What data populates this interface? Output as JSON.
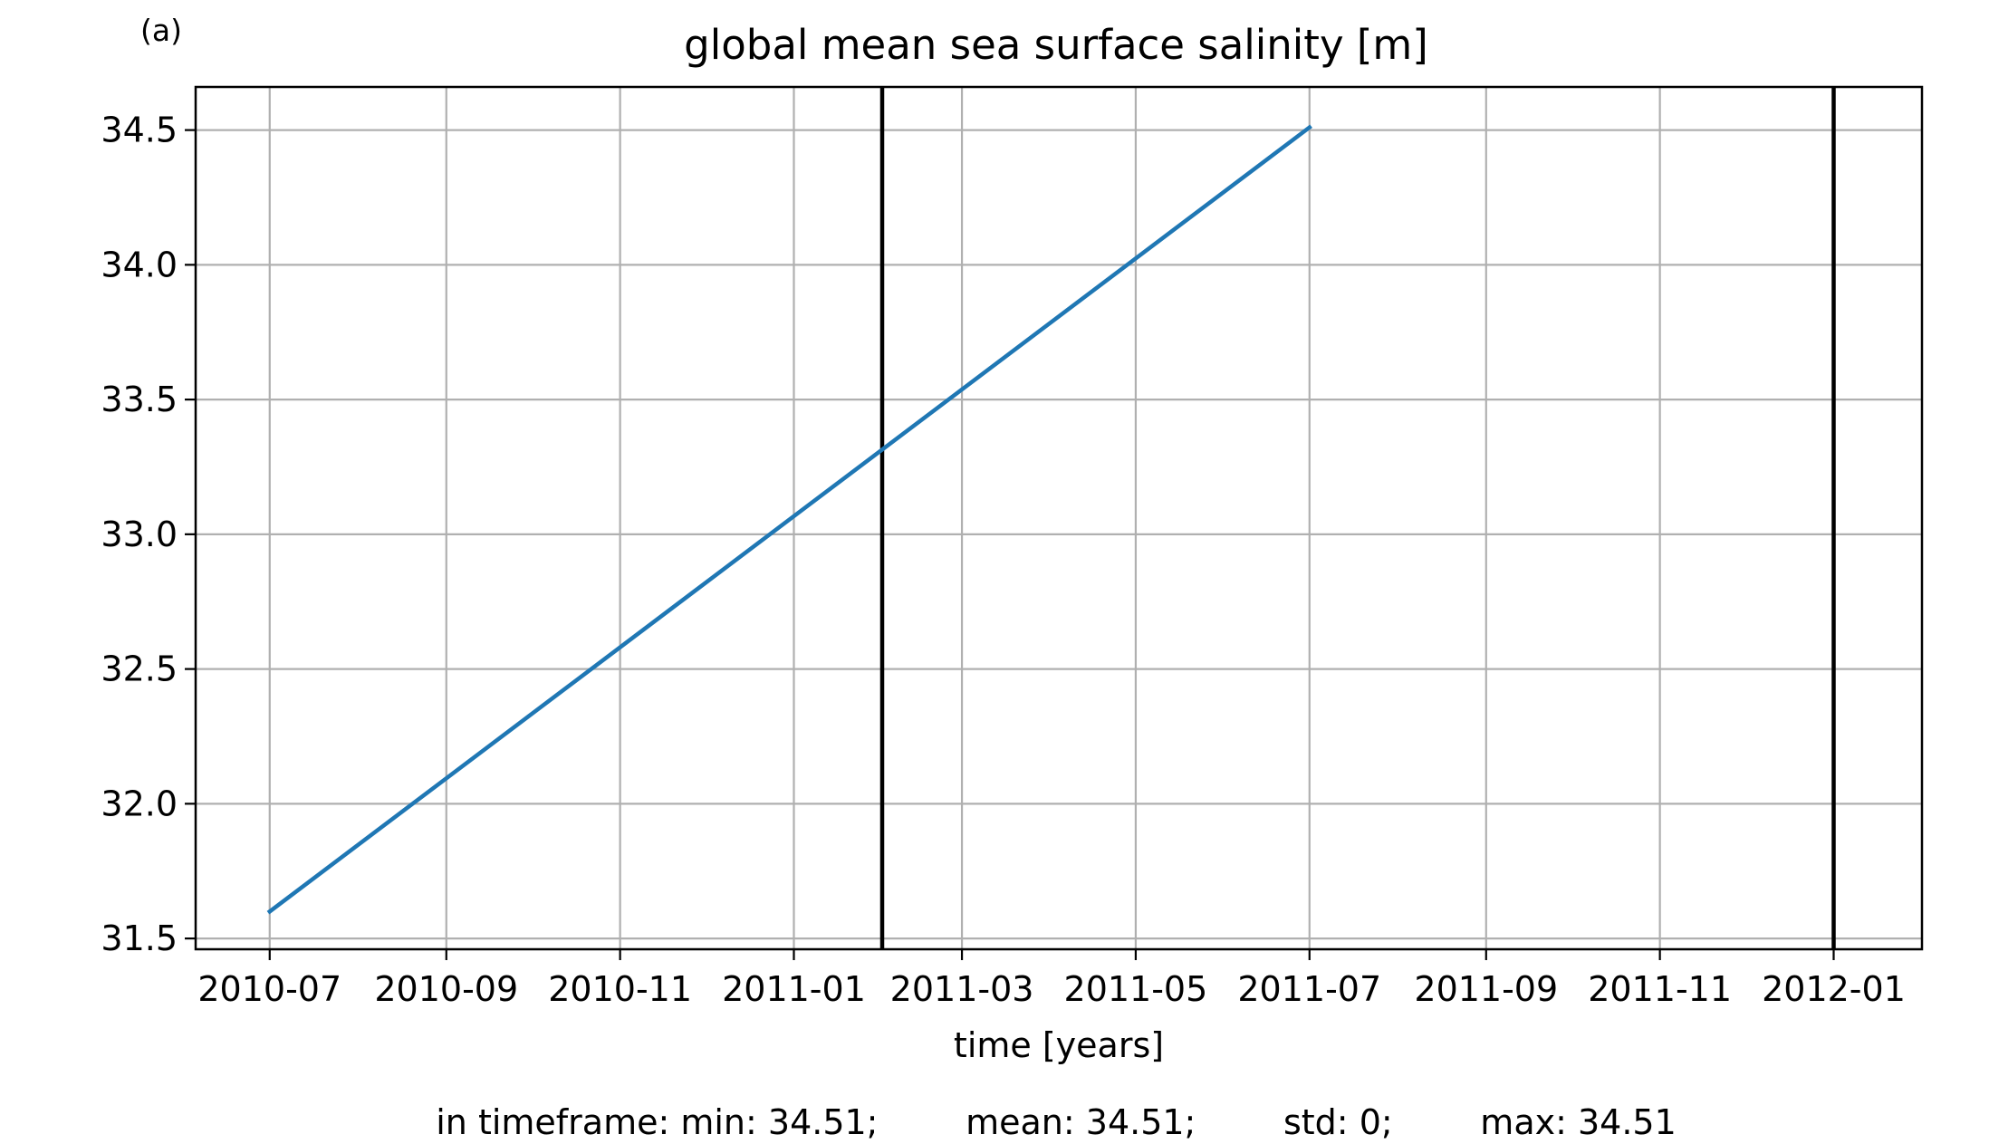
{
  "panel_label": "(a)",
  "stats_line": "in timeframe: min: 34.51;        mean: 34.51;        std: 0;        max: 34.51",
  "colors": {
    "series": "#1f77b4",
    "grid": "#b0b0b0",
    "axes": "#000000",
    "marker_lines": "#000000"
  },
  "chart_data": {
    "type": "line",
    "title": "global mean sea surface salinity [m]",
    "xlabel": "time [years]",
    "ylabel": "",
    "x_type": "date",
    "xlim": [
      "2010-06-05",
      "2012-02-01"
    ],
    "ylim": [
      31.46,
      34.66
    ],
    "grid": true,
    "x_ticks": [
      "2010-07-01",
      "2010-09-01",
      "2010-11-01",
      "2011-01-01",
      "2011-03-01",
      "2011-05-01",
      "2011-07-01",
      "2011-09-01",
      "2011-11-01",
      "2012-01-01"
    ],
    "x_tick_labels": [
      "2010-07",
      "2010-09",
      "2010-11",
      "2011-01",
      "2011-03",
      "2011-05",
      "2011-07",
      "2011-09",
      "2011-11",
      "2012-01"
    ],
    "y_ticks": [
      31.5,
      32.0,
      32.5,
      33.0,
      33.5,
      34.0,
      34.5
    ],
    "y_tick_labels": [
      "31.5",
      "32.0",
      "32.5",
      "33.0",
      "33.5",
      "34.0",
      "34.5"
    ],
    "series": [
      {
        "x": [
          "2010-07-01",
          "2011-07-01"
        ],
        "y": [
          31.6,
          34.51
        ]
      }
    ],
    "vlines": [
      "2011-02-01",
      "2012-01-01"
    ]
  }
}
